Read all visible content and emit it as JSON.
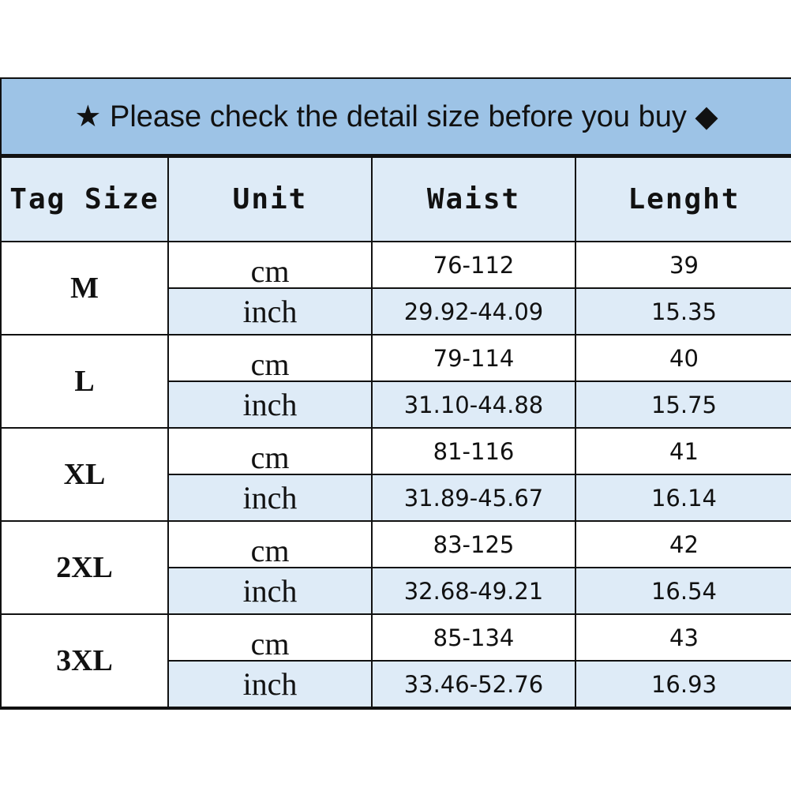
{
  "title": "★ Please check the detail size before you buy ◆",
  "headers": [
    "Tag Size",
    "Unit",
    "Waist",
    "Lenght"
  ],
  "colors": {
    "title_bg": "#9dc3e6",
    "header_bg": "#deebf7",
    "border": "#111111"
  },
  "rows": [
    {
      "size": "M",
      "cm": {
        "unit": "cm",
        "waist": "76-112",
        "length": "39"
      },
      "inch": {
        "unit": "inch",
        "waist": "29.92-44.09",
        "length": "15.35"
      }
    },
    {
      "size": "L",
      "cm": {
        "unit": "cm",
        "waist": "79-114",
        "length": "40"
      },
      "inch": {
        "unit": "inch",
        "waist": "31.10-44.88",
        "length": "15.75"
      }
    },
    {
      "size": "XL",
      "cm": {
        "unit": "cm",
        "waist": "81-116",
        "length": "41"
      },
      "inch": {
        "unit": "inch",
        "waist": "31.89-45.67",
        "length": "16.14"
      }
    },
    {
      "size": "2XL",
      "cm": {
        "unit": "cm",
        "waist": "83-125",
        "length": "42"
      },
      "inch": {
        "unit": "inch",
        "waist": "32.68-49.21",
        "length": "16.54"
      }
    },
    {
      "size": "3XL",
      "cm": {
        "unit": "cm",
        "waist": "85-134",
        "length": "43"
      },
      "inch": {
        "unit": "inch",
        "waist": "33.46-52.76",
        "length": "16.93"
      }
    }
  ]
}
